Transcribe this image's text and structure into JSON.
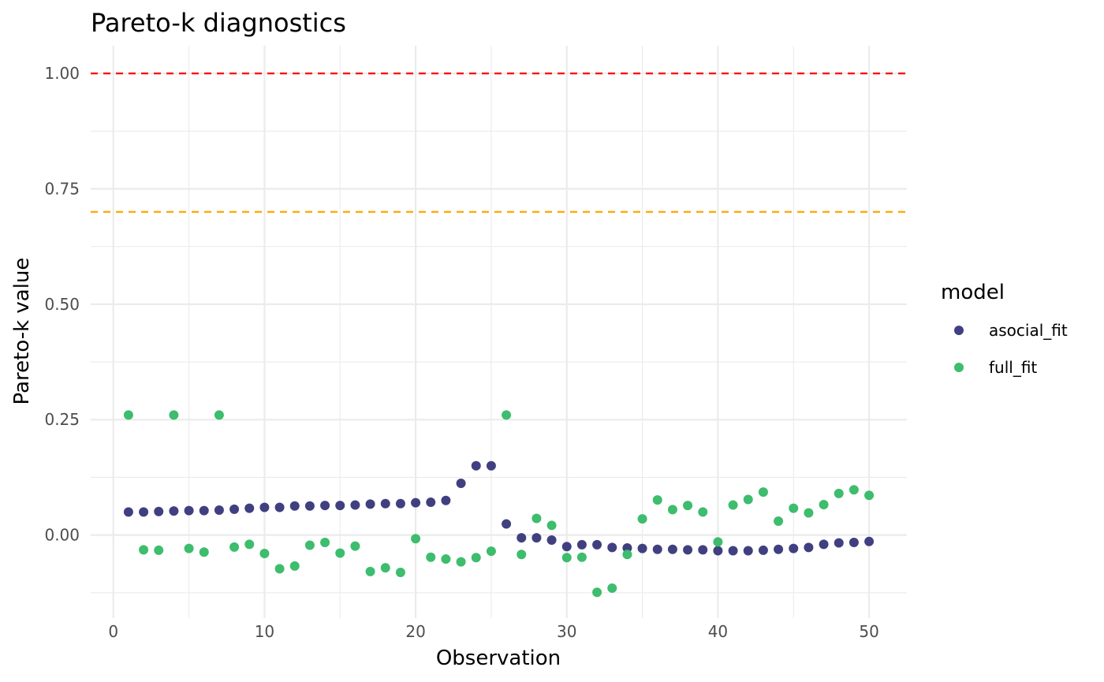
{
  "chart_data": {
    "type": "scatter",
    "title": "Pareto-k diagnostics",
    "xlabel": "Observation",
    "ylabel": "Pareto-k value",
    "xlim": [
      -1.5,
      52.5
    ],
    "ylim": [
      -0.18,
      1.06
    ],
    "x_ticks": [
      0,
      10,
      20,
      30,
      40,
      50
    ],
    "x_tick_labels": [
      "0",
      "10",
      "20",
      "30",
      "40",
      "50"
    ],
    "y_ticks": [
      0.0,
      0.25,
      0.5,
      0.75,
      1.0
    ],
    "y_tick_labels": [
      "0.00",
      "0.25",
      "0.50",
      "0.75",
      "1.00"
    ],
    "grid": true,
    "reference_lines": [
      {
        "y": 1.0,
        "color": "#ff0000",
        "style": "dashed"
      },
      {
        "y": 0.7,
        "color": "#ffa500",
        "style": "dashed"
      }
    ],
    "legend": {
      "title": "model",
      "position": "right"
    },
    "series": [
      {
        "name": "asocial_fit",
        "color": "#404080",
        "x": [
          1,
          2,
          3,
          4,
          5,
          6,
          7,
          8,
          9,
          10,
          11,
          12,
          13,
          14,
          15,
          16,
          17,
          18,
          19,
          20,
          21,
          22,
          23,
          24,
          25,
          26,
          27,
          28,
          29,
          30,
          31,
          32,
          33,
          34,
          35,
          36,
          37,
          38,
          39,
          40,
          41,
          42,
          43,
          44,
          45,
          46,
          47,
          48,
          49,
          50
        ],
        "y": [
          0.05,
          0.05,
          0.051,
          0.052,
          0.053,
          0.053,
          0.054,
          0.056,
          0.058,
          0.06,
          0.06,
          0.063,
          0.063,
          0.064,
          0.064,
          0.065,
          0.067,
          0.068,
          0.068,
          0.07,
          0.071,
          0.075,
          0.112,
          0.15,
          0.15,
          0.024,
          -0.006,
          -0.006,
          -0.011,
          -0.025,
          -0.021,
          -0.021,
          -0.027,
          -0.028,
          -0.029,
          -0.031,
          -0.031,
          -0.032,
          -0.032,
          -0.034,
          -0.034,
          -0.034,
          -0.033,
          -0.031,
          -0.029,
          -0.027,
          -0.02,
          -0.017,
          -0.016,
          -0.014
        ]
      },
      {
        "name": "full_fit",
        "color": "#3dbd6d",
        "x": [
          1,
          2,
          3,
          4,
          5,
          6,
          7,
          8,
          9,
          10,
          11,
          12,
          13,
          14,
          15,
          16,
          17,
          18,
          19,
          20,
          21,
          22,
          23,
          24,
          25,
          26,
          27,
          28,
          29,
          30,
          31,
          32,
          33,
          34,
          35,
          36,
          37,
          38,
          39,
          40,
          41,
          42,
          43,
          44,
          45,
          46,
          47,
          48,
          49,
          50
        ],
        "y": [
          0.26,
          -0.032,
          -0.033,
          0.26,
          -0.029,
          -0.037,
          0.26,
          -0.026,
          -0.02,
          -0.04,
          -0.073,
          -0.067,
          -0.022,
          -0.016,
          -0.039,
          -0.024,
          -0.079,
          -0.071,
          -0.081,
          -0.008,
          -0.048,
          -0.052,
          -0.058,
          -0.049,
          -0.035,
          0.26,
          -0.042,
          0.036,
          0.021,
          -0.049,
          -0.048,
          -0.124,
          -0.115,
          -0.042,
          0.035,
          0.076,
          0.055,
          0.064,
          0.05,
          -0.015,
          0.065,
          0.077,
          0.093,
          0.03,
          0.058,
          0.048,
          0.066,
          0.09,
          0.098,
          0.086
        ]
      }
    ]
  }
}
